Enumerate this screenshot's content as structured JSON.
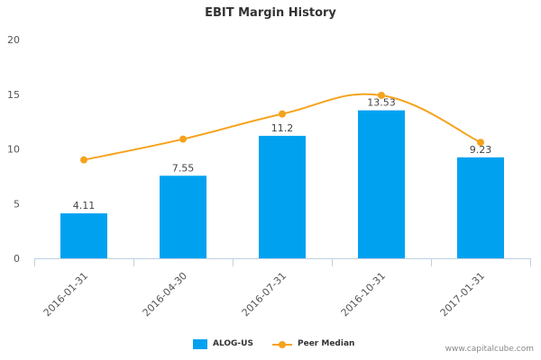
{
  "chart_data": {
    "type": "bar",
    "title": "EBIT Margin History",
    "categories": [
      "2016-01-31",
      "2016-04-30",
      "2016-07-31",
      "2016-10-31",
      "2017-01-31"
    ],
    "series": [
      {
        "name": "ALOG-US",
        "type": "bar",
        "color": "#00a2f0",
        "values": [
          4.11,
          7.55,
          11.2,
          13.53,
          9.23
        ],
        "labels": [
          "4.11",
          "7.55",
          "11.2",
          "13.53",
          "9.23"
        ]
      },
      {
        "name": "Peer Median",
        "type": "line",
        "color": "#f5a31d",
        "values": [
          9.0,
          10.9,
          13.2,
          14.9,
          10.6
        ]
      }
    ],
    "ylim": [
      0,
      20
    ],
    "yticks": [
      "0",
      "5",
      "10",
      "15",
      "20"
    ],
    "grid": false,
    "legend": "bottom-center"
  },
  "watermark": "www.capitalcube.com"
}
